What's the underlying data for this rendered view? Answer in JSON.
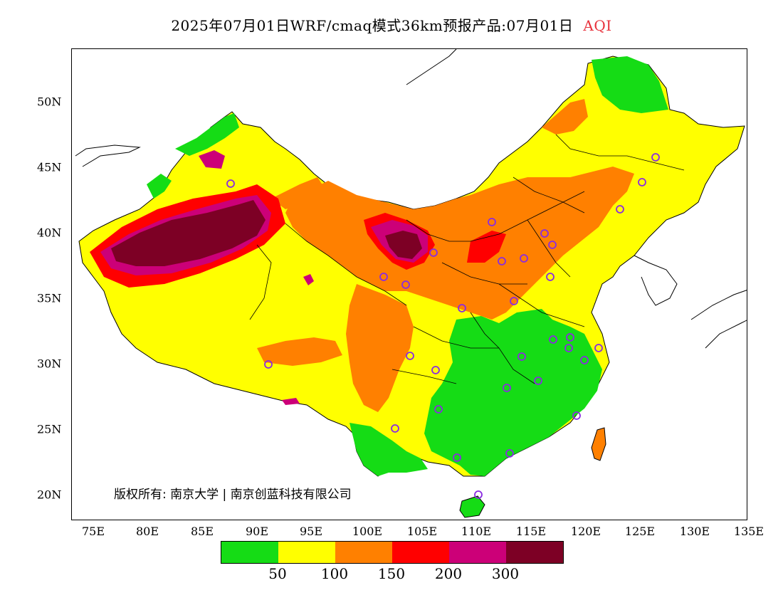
{
  "title": "2025年07月01日WRF/cmaq模式36km预报产品:07月01日",
  "variable": "AQI",
  "copyright": "版权所有: 南京大学 | 南京创蓝科技有限公司",
  "y_axis_labels": [
    "50N",
    "45N",
    "40N",
    "35N",
    "30N",
    "25N",
    "20N"
  ],
  "x_axis_labels": [
    "75E",
    "80E",
    "85E",
    "90E",
    "95E",
    "100E",
    "105E",
    "110E",
    "115E",
    "120E",
    "125E",
    "130E",
    "135E"
  ],
  "colorbar": {
    "colors": [
      "#15dc15",
      "#ffff00",
      "#ff8000",
      "#ff0000",
      "#cc0078",
      "#7d0025"
    ],
    "labels": [
      "50",
      "100",
      "150",
      "200",
      "300"
    ]
  },
  "region_colors": {
    "good": "#15dc15",
    "moderate": "#ffff00",
    "sensitive": "#ff8000",
    "unhealthy": "#ff0000",
    "very_unhealthy": "#cc0078",
    "hazardous": "#7d0025",
    "boundary": "#000000",
    "city_marker": "#8a2be2"
  }
}
